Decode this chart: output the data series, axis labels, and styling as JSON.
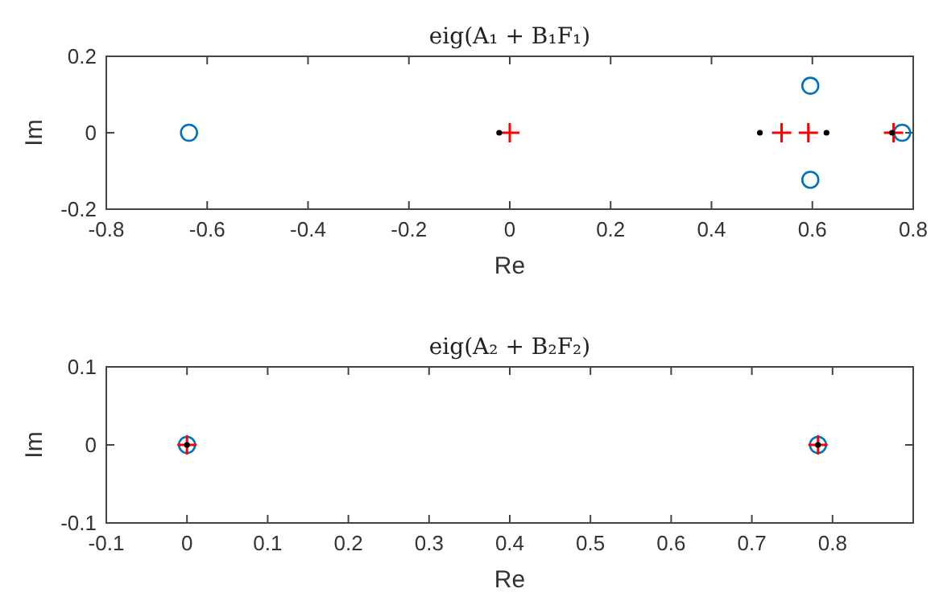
{
  "chart_data": [
    {
      "type": "scatter",
      "title": "eig(A₁ + B₁F₁)",
      "xlabel": "Re",
      "ylabel": "Im",
      "xlim": [
        -0.8,
        0.8
      ],
      "xticks": [
        -0.8,
        -0.6,
        -0.4,
        -0.2,
        0,
        0.2,
        0.4,
        0.6,
        0.8
      ],
      "ylim": [
        -0.2,
        0.2
      ],
      "yticks": [
        -0.2,
        0,
        0.2
      ],
      "grid": false,
      "series": [
        {
          "color": "#0072bd",
          "marker": "circle",
          "x": [
            -0.636,
            0.596,
            0.596,
            0.778
          ],
          "values": [
            0,
            0.123,
            -0.123,
            0
          ]
        },
        {
          "color": "#ff0000",
          "marker": "cross",
          "x": [
            0,
            0.539,
            0.592,
            0.761
          ],
          "values": [
            0,
            0,
            0,
            0
          ]
        },
        {
          "color": "#000000",
          "marker": "point",
          "x": [
            -0.021,
            0.496,
            0.628,
            0.758
          ],
          "values": [
            0,
            0,
            0,
            0
          ]
        }
      ]
    },
    {
      "type": "scatter",
      "title": "eig(A₂ + B₂F₂)",
      "xlabel": "Re",
      "ylabel": "Im",
      "xlim": [
        -0.1,
        0.9
      ],
      "xticks": [
        -0.1,
        0,
        0.1,
        0.2,
        0.3,
        0.4,
        0.5,
        0.6,
        0.7,
        0.8
      ],
      "ylim": [
        -0.1,
        0.1
      ],
      "yticks": [
        -0.1,
        0,
        0.1
      ],
      "grid": false,
      "series": [
        {
          "color": "#0072bd",
          "marker": "circle",
          "x": [
            0,
            0.782
          ],
          "values": [
            0,
            0
          ]
        },
        {
          "color": "#ff0000",
          "marker": "cross",
          "x": [
            0,
            0.782
          ],
          "values": [
            0,
            0
          ]
        },
        {
          "color": "#000000",
          "marker": "point",
          "x": [
            0,
            0.782
          ],
          "values": [
            0,
            0
          ]
        }
      ]
    }
  ]
}
